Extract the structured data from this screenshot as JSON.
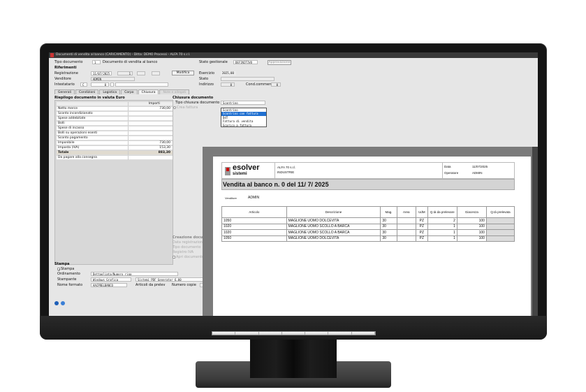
{
  "window": {
    "title": "Documenti di vendita al banco (CARICAMENTO) - Ditta: DEMO Processi - ALFA 70 s.r.l."
  },
  "header": {
    "tipo_documento_label": "Tipo documento",
    "tipo_documento_code": "1",
    "tipo_documento_desc": "Documento di vendita al banco",
    "stato_gestionale_label": "Stato gestionale",
    "stato_gestionale_value": "DEFINITIVO",
    "approvazione_label": "Approvazione",
    "riferimenti_label": "Riferimenti",
    "registrazione_label": "Registrazione",
    "registrazione_date": "11/07/2025",
    "registrazione_num": "1",
    "modifica_label": "Modifica",
    "esercizio_label": "Esercizio",
    "esercizio_value": "2025,00",
    "venditore_label": "Venditore",
    "venditore_value": "ADMIN",
    "stato_label": "Stato",
    "intestatario_label": "Intestatario",
    "intestatario_type": "C",
    "intestatario_code": "0",
    "indirizzo_label": "Indirizzo",
    "indirizzo_value": "0",
    "cond_label": "Cond.commerc.",
    "cond_value": "0"
  },
  "tabs": [
    {
      "label": "Generali"
    },
    {
      "label": "Condizioni"
    },
    {
      "label": "Logistica"
    },
    {
      "label": "Corpo"
    },
    {
      "label": "Chiusura",
      "active": true
    },
    {
      "label": "Note e allegati",
      "disabled": true
    }
  ],
  "riepilogo": {
    "title": "Riepilogo documento in valuta Euro",
    "col_importi": "Importi",
    "rows": [
      {
        "label": "Netto merce",
        "value": "730,00"
      },
      {
        "label": "Sconto incondizionato",
        "value": ""
      },
      {
        "label": "Spese addebitate",
        "value": ""
      },
      {
        "label": "Bolli",
        "value": ""
      },
      {
        "label": "Spese di incasso",
        "value": ""
      },
      {
        "label": "Bolli su operazioni esenti",
        "value": ""
      },
      {
        "label": "Sconto pagamento",
        "value": ""
      },
      {
        "label": "Imponibile",
        "value": "730,00"
      },
      {
        "label": "Imposta (IVA)",
        "value": "153,30"
      },
      {
        "label": "Totale",
        "value": "883,30",
        "total": true
      },
      {
        "label": "Da pagare alla consegna",
        "value": ""
      }
    ]
  },
  "chiusura": {
    "title": "Chiusura documento",
    "tipo_label": "Tipo chiusura documento",
    "tipo_value": "Scontrino",
    "crea_fattura_label": "Crea fattura",
    "options": [
      "Scontrino",
      "Scontrino con fattura",
      "DdT",
      "Fattura di vendita",
      "Scarico a fattura"
    ],
    "selected_option": "Scontrino con fattura"
  },
  "creazione": {
    "title": "Creazione documento",
    "data_label": "Data registrazione",
    "tipo_label": "Tipo documento",
    "registro_label": "Registro IVA",
    "apri_label": "Apri documento"
  },
  "stampa": {
    "title": "Stampa",
    "stampa_check": "Stampa",
    "ordinamento_label": "Ordinamento",
    "ordinamento_value": "Dettagliata/Numero riga",
    "stampante_label": "Stampante",
    "stampante_value": "Windows Grafica",
    "stampante_device": "Sistemi PDF Generator 6.00",
    "nome_formato_label": "Nome formato",
    "nome_formato_value": "AACPRELBANCO",
    "articoli_label": "Articoli da prelev",
    "numero_copie_label": "Numero copie"
  },
  "report": {
    "logo_text": "esolver",
    "logo_sub": "sistemi",
    "company": "ALFA 70 s.r.l.",
    "company_sub": "INDUSTRIE",
    "data_label": "Data",
    "data_value": "11/07/2025",
    "operatore_label": "Operatore",
    "operatore_value": "ADMIN",
    "title": "Vendita al banco n.  0 del  11/ 7/ 2025",
    "venditore_label": "Venditore",
    "venditore_value": "ADMIN",
    "columns": [
      "Articolo",
      "Descrizione",
      "Mag.",
      "Area",
      "UdM",
      "Q.tà da prelevare",
      "Giacenza",
      "Q.tà prelevata"
    ],
    "rows": [
      [
        "1050",
        "MAGLIONE UOMO DOLCEVITA",
        "30",
        "",
        "PZ",
        "2",
        "100",
        ""
      ],
      [
        "1020",
        "MAGLIONE UOMO SCOLLO A BARCA",
        "30",
        "",
        "PZ",
        "1",
        "100",
        ""
      ],
      [
        "1020",
        "MAGLIONE UOMO SCOLLO A BARCA",
        "30",
        "",
        "PZ",
        "1",
        "100",
        ""
      ],
      [
        "1050",
        "MAGLIONE UOMO DOLCEVITA",
        "30",
        "",
        "PZ",
        "1",
        "100",
        ""
      ]
    ]
  },
  "footer": {
    "icons": [
      "help-icon",
      "info-icon"
    ]
  }
}
